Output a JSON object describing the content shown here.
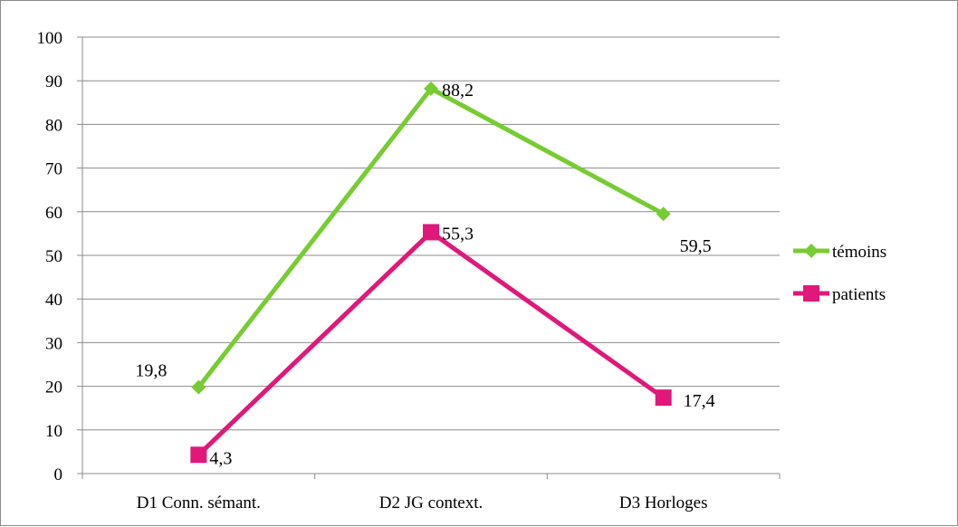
{
  "chart_data": {
    "type": "line",
    "categories": [
      "D1 Conn. sémant.",
      "D2 JG context.",
      "D3 Horloges"
    ],
    "series": [
      {
        "name": "témoins",
        "values": [
          19.8,
          88.2,
          59.5
        ],
        "labels": [
          "19,8",
          "88,2",
          "59,5"
        ],
        "color": "#77CC33",
        "marker": "diamond"
      },
      {
        "name": "patients",
        "values": [
          4.3,
          55.3,
          17.4
        ],
        "labels": [
          "4,3",
          "55,3",
          "17,4"
        ],
        "color": "#E0187A",
        "marker": "square"
      }
    ],
    "ylim": [
      0,
      100
    ],
    "yticks": [
      "0",
      "10",
      "20",
      "30",
      "40",
      "50",
      "60",
      "70",
      "80",
      "90",
      "100"
    ],
    "grid": true,
    "legend_position": "right",
    "title": "",
    "xlabel": "",
    "ylabel": ""
  }
}
